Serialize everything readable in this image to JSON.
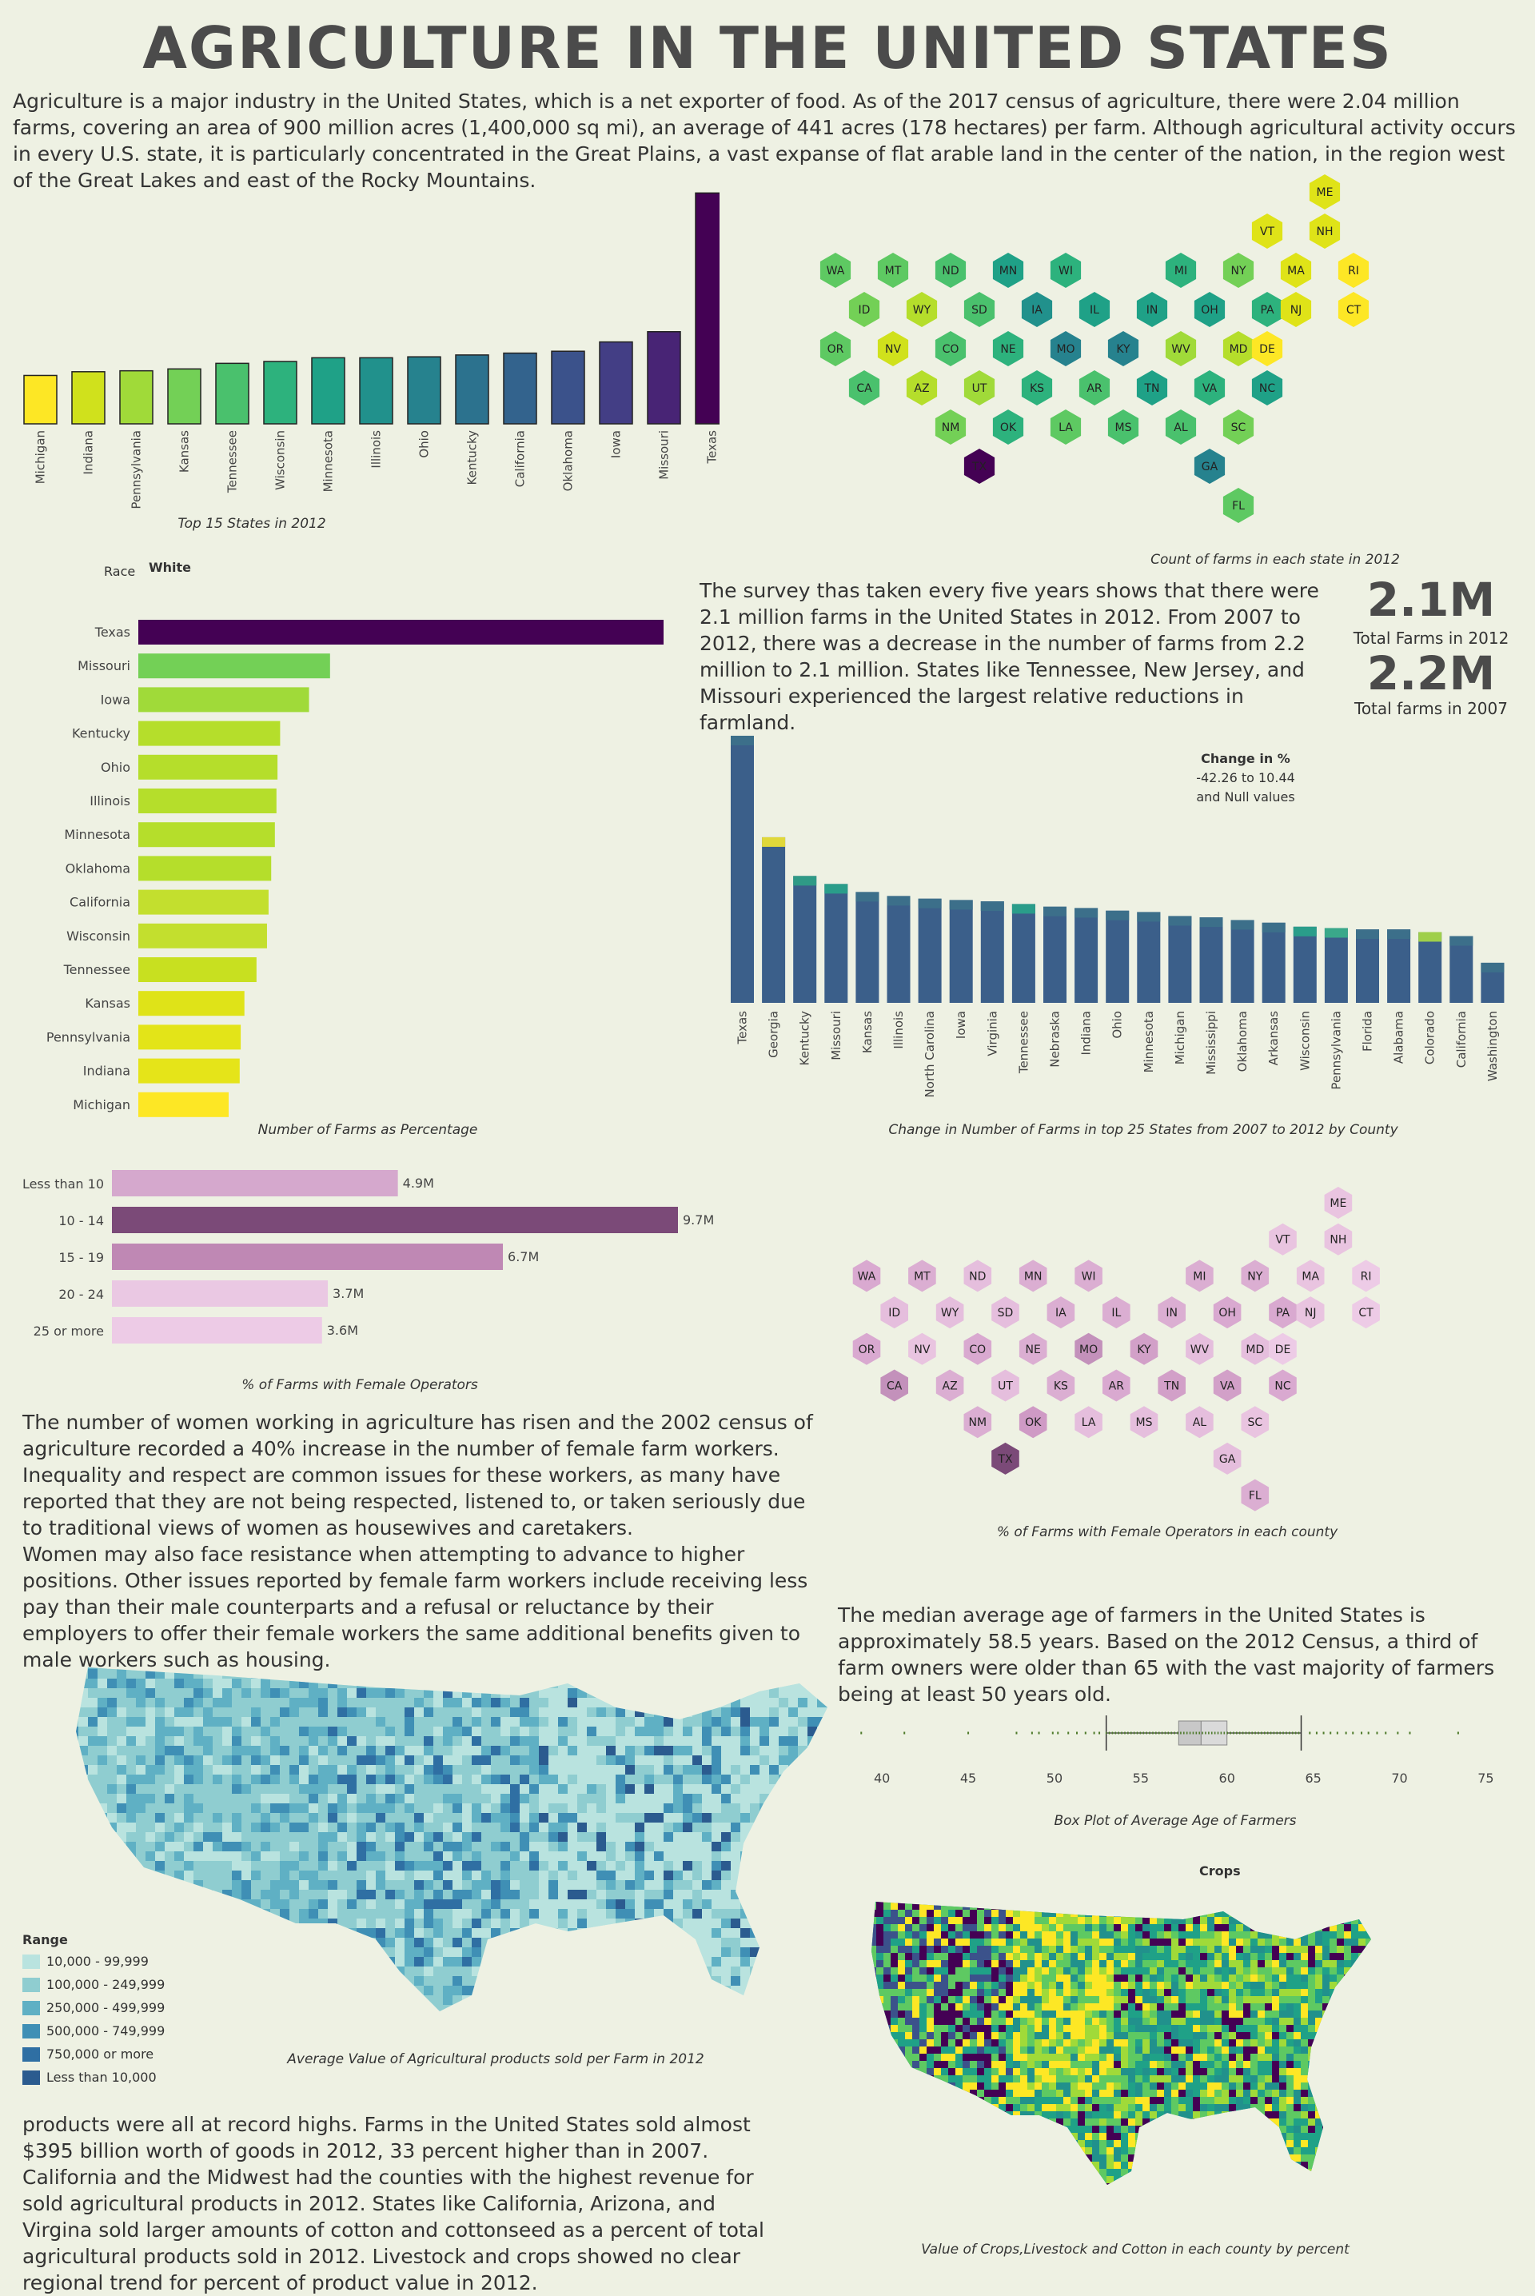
{
  "title": "AGRICULTURE IN THE UNITED STATES",
  "intro": "Agriculture is a major industry in the United States, which is a net exporter of food. As of the 2017 census of agriculture, there were 2.04 million farms, covering an area of 900 million acres (1,400,000 sq mi), an average of 441 acres (178 hectares) per farm. Although agricultural activity occurs in every U.S. state, it is particularly concentrated in the Great Plains, a vast expanse of flat arable land in the center of the nation, in the region west of the Great Lakes and east of the Rocky Mountains.",
  "colors": {
    "background": "#eef1e3",
    "viridis_dark": "#440154",
    "viridis_yellow": "#fde725",
    "female_dark": "#7b4a78",
    "female_light": "#eac8e3",
    "map_low": "#b9e3df",
    "map_high": "#2b5b8f"
  },
  "survey_text": "The survey thas taken every five years shows that there were 2.1 million farms in the United States in 2012. From 2007 to 2012, there was a decrease in the number of farms from 2.2 million to 2.1 million. States like Tennessee, New Jersey, and Missouri experienced the largest relative reductions in farmland.",
  "kpi": [
    {
      "value": "2.1M",
      "label": "Total Farms in 2012"
    },
    {
      "value": "2.2M",
      "label": "Total farms in 2007"
    }
  ],
  "women_text_1": "The number of women working in agriculture has risen and the 2002 census of agriculture recorded a 40% increase in the number of female farm workers. Inequality and respect are common issues for these workers, as many have reported that they are not being respected, listened to, or taken seriously due to traditional views of women as housewives and caretakers.",
  "women_text_2": "Women may also face resistance when attempting to advance to higher positions. Other issues reported by female farm workers include receiving less pay than their male counterparts and a refusal or reluctance by their employers to offer their female workers the same additional benefits given to male workers such as housing.",
  "age_text": "The median average age of farmers in the United States is approximately 58.5 years. Based on the 2012 Census, a third of farm owners were older than 65 with the vast majority of farmers being at least 50 years old.",
  "products_text": "products were all at record highs. Farms in the United States sold almost $395 billion worth of goods in 2012, 33 percent higher than in 2007. California and the Midwest had the counties with the highest revenue for sold agricultural products in 2012. States like California, Arizona, and Virgina sold larger amounts of cotton and cottonseed as a percent of total agricultural products sold in 2012. Livestock and crops showed no clear regional trend for percent of product value in 2012.",
  "value_map": {
    "caption": "Average Value of Agricultural products sold per Farm in 2012",
    "legend_title": "Range",
    "legend": [
      {
        "label": "10,000 - 99,999",
        "color": "#b9e3df"
      },
      {
        "label": "100,000 - 249,999",
        "color": "#8fcdd0"
      },
      {
        "label": "250,000 - 499,999",
        "color": "#5fb0c4"
      },
      {
        "label": "500,000 - 749,999",
        "color": "#3f8fb5"
      },
      {
        "label": "750,000 or more",
        "color": "#2f6fa3"
      },
      {
        "label": "Less than 10,000",
        "color": "#2b5b8f"
      }
    ]
  },
  "crops_map": {
    "title": "Crops",
    "caption": "Value of Crops,Livestock and Cotton in each county by percent"
  },
  "chart_data": [
    {
      "id": "top15",
      "type": "bar",
      "caption": "Top 15 States in 2012",
      "categories": [
        "Michigan",
        "Indiana",
        "Pennsylvania",
        "Kansas",
        "Tennessee",
        "Wisconsin",
        "Minnesota",
        "Illinois",
        "Ohio",
        "Kentucky",
        "California",
        "Oklahoma",
        "Iowa",
        "Missouri",
        "Texas"
      ],
      "values": [
        52,
        56,
        57,
        59,
        65,
        67,
        71,
        71,
        72,
        74,
        76,
        78,
        88,
        99,
        248
      ],
      "colors": [
        "#fde725",
        "#d0e11c",
        "#a0da39",
        "#73d056",
        "#4ac16d",
        "#2db27d",
        "#1fa187",
        "#21918c",
        "#26828e",
        "#2c728e",
        "#33638d",
        "#3b528b",
        "#433e85",
        "#482475",
        "#440154"
      ]
    },
    {
      "id": "hexmap_count",
      "type": "heatmap",
      "caption": "Count of farms in each state in 2012",
      "states": [
        {
          "s": "ME",
          "c": "#dfe318"
        },
        {
          "s": "VT",
          "c": "#dfe318"
        },
        {
          "s": "NH",
          "c": "#dfe318"
        },
        {
          "s": "WA",
          "c": "#5ec962"
        },
        {
          "s": "MT",
          "c": "#5ec962"
        },
        {
          "s": "ND",
          "c": "#4ac16d"
        },
        {
          "s": "MN",
          "c": "#1fa187"
        },
        {
          "s": "WI",
          "c": "#2db27d"
        },
        {
          "s": "MI",
          "c": "#2db27d"
        },
        {
          "s": "NY",
          "c": "#73d056"
        },
        {
          "s": "MA",
          "c": "#dfe318"
        },
        {
          "s": "RI",
          "c": "#fde725"
        },
        {
          "s": "ID",
          "c": "#73d056"
        },
        {
          "s": "WY",
          "c": "#b5de2b"
        },
        {
          "s": "SD",
          "c": "#4ac16d"
        },
        {
          "s": "IA",
          "c": "#21918c"
        },
        {
          "s": "IL",
          "c": "#1fa187"
        },
        {
          "s": "IN",
          "c": "#1fa187"
        },
        {
          "s": "OH",
          "c": "#1fa187"
        },
        {
          "s": "PA",
          "c": "#2db27d"
        },
        {
          "s": "NJ",
          "c": "#dfe318"
        },
        {
          "s": "CT",
          "c": "#fde725"
        },
        {
          "s": "OR",
          "c": "#5ec962"
        },
        {
          "s": "NV",
          "c": "#d0e11c"
        },
        {
          "s": "CO",
          "c": "#4ac16d"
        },
        {
          "s": "NE",
          "c": "#2db27d"
        },
        {
          "s": "MO",
          "c": "#26828e"
        },
        {
          "s": "KY",
          "c": "#26828e"
        },
        {
          "s": "WV",
          "c": "#a0da39"
        },
        {
          "s": "MD",
          "c": "#b5de2b"
        },
        {
          "s": "DE",
          "c": "#fde725"
        },
        {
          "s": "CA",
          "c": "#4ac16d"
        },
        {
          "s": "AZ",
          "c": "#b5de2b"
        },
        {
          "s": "UT",
          "c": "#a0da39"
        },
        {
          "s": "KS",
          "c": "#2db27d"
        },
        {
          "s": "AR",
          "c": "#4ac16d"
        },
        {
          "s": "TN",
          "c": "#1fa187"
        },
        {
          "s": "VA",
          "c": "#2db27d"
        },
        {
          "s": "NC",
          "c": "#1fa187"
        },
        {
          "s": "NM",
          "c": "#73d056"
        },
        {
          "s": "OK",
          "c": "#2db27d"
        },
        {
          "s": "LA",
          "c": "#5ec962"
        },
        {
          "s": "MS",
          "c": "#4ac16d"
        },
        {
          "s": "AL",
          "c": "#4ac16d"
        },
        {
          "s": "SC",
          "c": "#73d056"
        },
        {
          "s": "TX",
          "c": "#440154"
        },
        {
          "s": "GA",
          "c": "#26828e"
        },
        {
          "s": "FL",
          "c": "#5ec962"
        }
      ]
    },
    {
      "id": "percent_bar",
      "type": "bar",
      "orientation": "horizontal",
      "caption": "Number of Farms as Percentage",
      "filter_label": "Race",
      "filter_value": "White",
      "categories": [
        "Texas",
        "Missouri",
        "Iowa",
        "Kentucky",
        "Ohio",
        "Illinois",
        "Minnesota",
        "Oklahoma",
        "California",
        "Wisconsin",
        "Tennessee",
        "Kansas",
        "Pennsylvania",
        "Indiana",
        "Michigan"
      ],
      "values": [
        100,
        36.5,
        32.5,
        27,
        26.5,
        26.3,
        26,
        25.3,
        24.8,
        24.5,
        22.5,
        20.2,
        19.5,
        19.3,
        17.2
      ],
      "colors": [
        "#440154",
        "#73d056",
        "#a0da39",
        "#b5de2b",
        "#b5de2b",
        "#b5de2b",
        "#b5de2b",
        "#b5de2b",
        "#c3df2e",
        "#c3df2e",
        "#c8e020",
        "#dfe318",
        "#e3e418",
        "#e5e419",
        "#fde725"
      ]
    },
    {
      "id": "change_bar",
      "type": "bar",
      "caption": "Change in Number of Farms in top 25 States from 2007 to 2012 by County",
      "legend_title": "Change in %",
      "legend_lines": [
        "-42.26 to 10.44",
        "and Null values"
      ],
      "categories": [
        "Texas",
        "Georgia",
        "Kentucky",
        "Missouri",
        "Kansas",
        "Illinois",
        "North Carolina",
        "Iowa",
        "Virginia",
        "Tennessee",
        "Nebraska",
        "Indiana",
        "Ohio",
        "Minnesota",
        "Michigan",
        "Mississippi",
        "Oklahoma",
        "Arkansas",
        "Wisconsin",
        "Pennsylvania",
        "Florida",
        "Alabama",
        "Colorado",
        "California",
        "Washington"
      ],
      "values": [
        100,
        62,
        47.5,
        44.5,
        41.5,
        40,
        39,
        38.5,
        38,
        37,
        36,
        35.5,
        34.5,
        34,
        32.5,
        32,
        31,
        30,
        28.5,
        28,
        27.5,
        27.5,
        26.5,
        25,
        15
      ],
      "top_accent": [
        "#3c6f8a",
        "#e0d83a",
        "#2f9a86",
        "#2a9d8a",
        "#3c6f8a",
        "#3c6f8a",
        "#3c6f8a",
        "#3c6f8a",
        "#3c6f8a",
        "#2a9d8a",
        "#3c6f8a",
        "#3c6f8a",
        "#3c6f8a",
        "#3c6f8a",
        "#3c6f8a",
        "#3c6f8a",
        "#3c6f8a",
        "#3c6f8a",
        "#2a9d8a",
        "#3aa88a",
        "#3c6f8a",
        "#3c6f8a",
        "#9fcf4a",
        "#3c6f8a",
        "#3c6f8a"
      ]
    },
    {
      "id": "female_bar",
      "type": "bar",
      "orientation": "horizontal",
      "caption": "% of Farms with Female Operators",
      "categories": [
        "Less than 10",
        "10 - 14",
        "15 - 19",
        "20 - 24",
        "25 or more"
      ],
      "values": [
        4.9,
        9.7,
        6.7,
        3.7,
        3.6
      ],
      "labels": [
        "4.9M",
        "9.7M",
        "6.7M",
        "3.7M",
        "3.6M"
      ],
      "colors": [
        "#d5a8cd",
        "#7b4a78",
        "#bf88b4",
        "#eac8e3",
        "#edcbe6"
      ]
    },
    {
      "id": "hexmap_female",
      "type": "heatmap",
      "caption": "% of Farms with Female Operators in each county",
      "states": [
        {
          "s": "ME",
          "c": "#e9c4e0"
        },
        {
          "s": "VT",
          "c": "#e9c4e0"
        },
        {
          "s": "NH",
          "c": "#e9c4e0"
        },
        {
          "s": "WA",
          "c": "#d9a9d0"
        },
        {
          "s": "MT",
          "c": "#dbaed2"
        },
        {
          "s": "ND",
          "c": "#e5bedd"
        },
        {
          "s": "MN",
          "c": "#dbaed2"
        },
        {
          "s": "WI",
          "c": "#dbaed2"
        },
        {
          "s": "MI",
          "c": "#dbaed2"
        },
        {
          "s": "NY",
          "c": "#dbaed2"
        },
        {
          "s": "MA",
          "c": "#e9c4e0"
        },
        {
          "s": "RI",
          "c": "#edcbe6"
        },
        {
          "s": "ID",
          "c": "#e5bedd"
        },
        {
          "s": "WY",
          "c": "#e5bedd"
        },
        {
          "s": "SD",
          "c": "#e5bedd"
        },
        {
          "s": "IA",
          "c": "#dbaed2"
        },
        {
          "s": "IL",
          "c": "#dbaed2"
        },
        {
          "s": "IN",
          "c": "#dbaed2"
        },
        {
          "s": "OH",
          "c": "#d9a9d0"
        },
        {
          "s": "PA",
          "c": "#d9a9d0"
        },
        {
          "s": "NJ",
          "c": "#e9c4e0"
        },
        {
          "s": "CT",
          "c": "#edcbe6"
        },
        {
          "s": "OR",
          "c": "#d9a9d0"
        },
        {
          "s": "NV",
          "c": "#e9c4e0"
        },
        {
          "s": "CO",
          "c": "#d9a9d0"
        },
        {
          "s": "NE",
          "c": "#dbaed2"
        },
        {
          "s": "MO",
          "c": "#c391bb"
        },
        {
          "s": "KY",
          "c": "#d2a0c8"
        },
        {
          "s": "WV",
          "c": "#e5bedd"
        },
        {
          "s": "MD",
          "c": "#e5bedd"
        },
        {
          "s": "DE",
          "c": "#edcbe6"
        },
        {
          "s": "CA",
          "c": "#c391bb"
        },
        {
          "s": "AZ",
          "c": "#dbaed2"
        },
        {
          "s": "UT",
          "c": "#e5bedd"
        },
        {
          "s": "KS",
          "c": "#dbaed2"
        },
        {
          "s": "AR",
          "c": "#d9a9d0"
        },
        {
          "s": "TN",
          "c": "#d2a0c8"
        },
        {
          "s": "VA",
          "c": "#d2a0c8"
        },
        {
          "s": "NC",
          "c": "#d9a9d0"
        },
        {
          "s": "NM",
          "c": "#dbaed2"
        },
        {
          "s": "OK",
          "c": "#cf9ac5"
        },
        {
          "s": "LA",
          "c": "#e5bedd"
        },
        {
          "s": "MS",
          "c": "#e5bedd"
        },
        {
          "s": "AL",
          "c": "#e5bedd"
        },
        {
          "s": "SC",
          "c": "#e9c4e0"
        },
        {
          "s": "TX",
          "c": "#7b4a78"
        },
        {
          "s": "GA",
          "c": "#e5bedd"
        },
        {
          "s": "FL",
          "c": "#dbaed2"
        }
      ]
    },
    {
      "id": "age_box",
      "type": "scatter",
      "caption": "Box Plot of Average Age of Farmers",
      "ticks": [
        40,
        45,
        50,
        55,
        60,
        65,
        70,
        75
      ],
      "xlim": [
        38,
        76
      ],
      "whisker_low": 53,
      "q1": 57.2,
      "median": 58.5,
      "q3": 60,
      "whisker_high": 64.3,
      "outliers": [
        38.8,
        41.3,
        45,
        47.8,
        48.7,
        49.1,
        49.9,
        50.2,
        50.8,
        51.3,
        51.8,
        52.3,
        52.6,
        64.8,
        65.2,
        65.6,
        66,
        66.4,
        66.9,
        67.3,
        67.8,
        68.2,
        68.7,
        69.2,
        69.9,
        70.6,
        73.4
      ]
    }
  ]
}
